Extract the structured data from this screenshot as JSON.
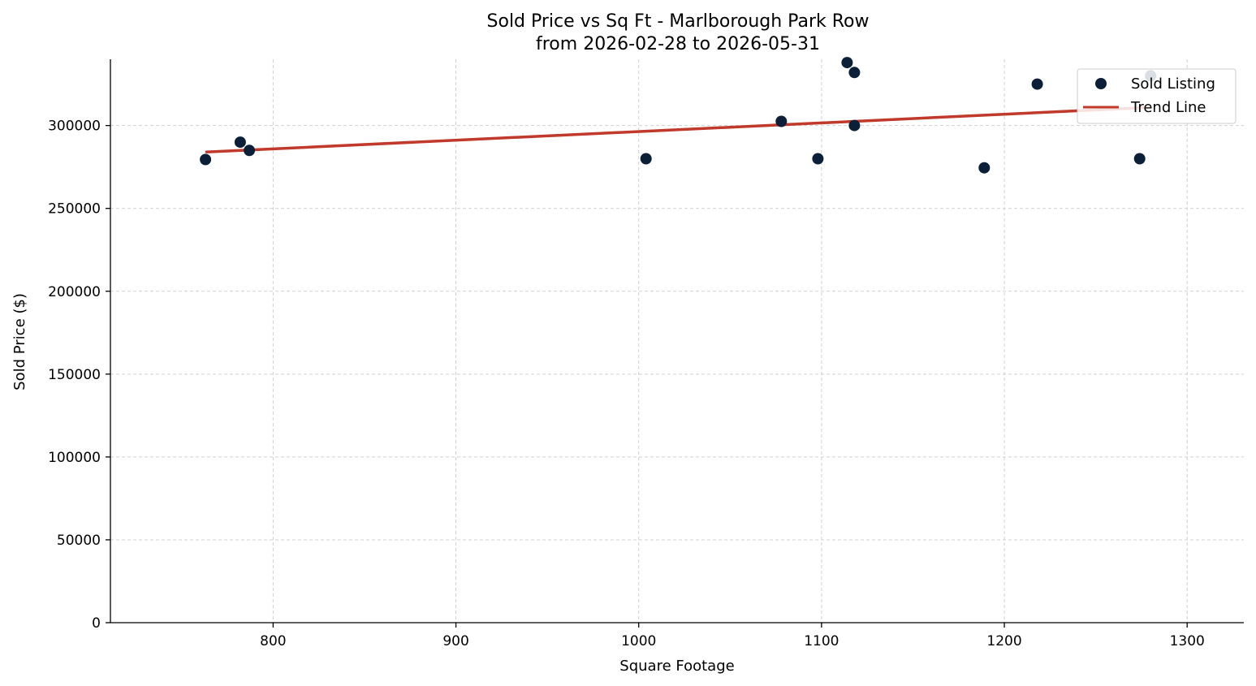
{
  "chart_data": {
    "type": "scatter",
    "title": "Sold Price vs Sq Ft - Marlborough Park Row",
    "subtitle": "from 2026-02-28 to 2026-05-31",
    "xlabel": "Square Footage",
    "ylabel": "Sold Price ($)",
    "xlim": [
      711,
      1331
    ],
    "ylim": [
      0,
      340000
    ],
    "xticks": [
      800,
      900,
      1000,
      1100,
      1200,
      1300
    ],
    "yticks": [
      0,
      50000,
      100000,
      150000,
      200000,
      250000,
      300000
    ],
    "grid": true,
    "legend_position": "top-right",
    "series": [
      {
        "name": "Sold Listing",
        "kind": "scatter",
        "color": "#0b1f38",
        "points": [
          {
            "x": 763,
            "y": 279500
          },
          {
            "x": 782,
            "y": 290000
          },
          {
            "x": 787,
            "y": 285000
          },
          {
            "x": 1004,
            "y": 280000
          },
          {
            "x": 1078,
            "y": 302500
          },
          {
            "x": 1098,
            "y": 280000
          },
          {
            "x": 1114,
            "y": 338000
          },
          {
            "x": 1118,
            "y": 332000
          },
          {
            "x": 1118,
            "y": 300000
          },
          {
            "x": 1189,
            "y": 274500
          },
          {
            "x": 1218,
            "y": 325000
          },
          {
            "x": 1274,
            "y": 280000
          },
          {
            "x": 1280,
            "y": 330000
          }
        ]
      },
      {
        "name": "Trend Line",
        "kind": "line",
        "color": "#c0392b",
        "points": [
          {
            "x": 763,
            "y": 284000
          },
          {
            "x": 1280,
            "y": 311000
          }
        ]
      }
    ]
  }
}
